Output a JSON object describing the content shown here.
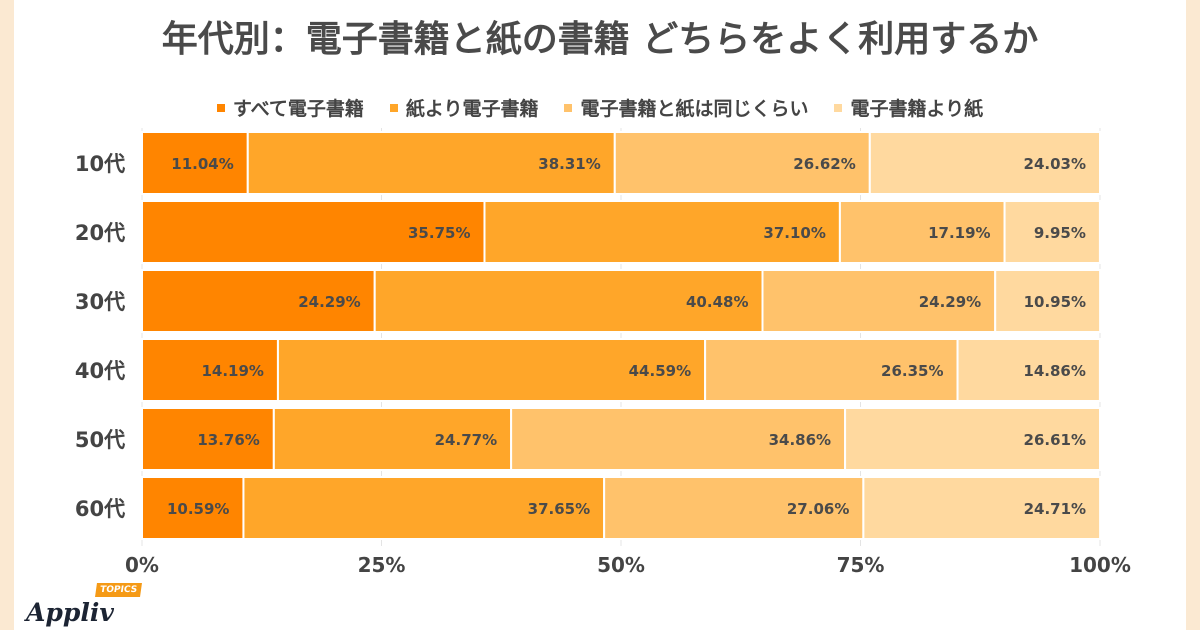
{
  "chart_data": {
    "type": "bar",
    "orientation": "horizontal",
    "stacked": "percent",
    "title": "年代別：電子書籍と紙の書籍 どちらをよく利用するか",
    "categories": [
      "10代",
      "20代",
      "30代",
      "40代",
      "50代",
      "60代"
    ],
    "series": [
      {
        "name": "すべて電子書籍",
        "color": "#ff8500",
        "values": [
          11.04,
          35.75,
          24.29,
          14.19,
          13.76,
          10.59
        ]
      },
      {
        "name": "紙より電子書籍",
        "color": "#ffa629",
        "values": [
          38.31,
          37.1,
          40.48,
          44.59,
          24.77,
          37.65
        ]
      },
      {
        "name": "電子書籍と紙は同じくらい",
        "color": "#ffc26b",
        "values": [
          26.62,
          17.19,
          24.29,
          26.35,
          34.86,
          27.06
        ]
      },
      {
        "name": "電子書籍より紙",
        "color": "#ffd99f",
        "values": [
          24.03,
          9.95,
          10.95,
          14.86,
          26.61,
          24.71
        ]
      }
    ],
    "xlim": [
      0,
      100
    ],
    "xticks": [
      "0%",
      "25%",
      "50%",
      "75%",
      "100%"
    ],
    "legend": "top",
    "grid": true
  },
  "branding": {
    "logo": "Appliv",
    "badge": "TOPICS"
  }
}
